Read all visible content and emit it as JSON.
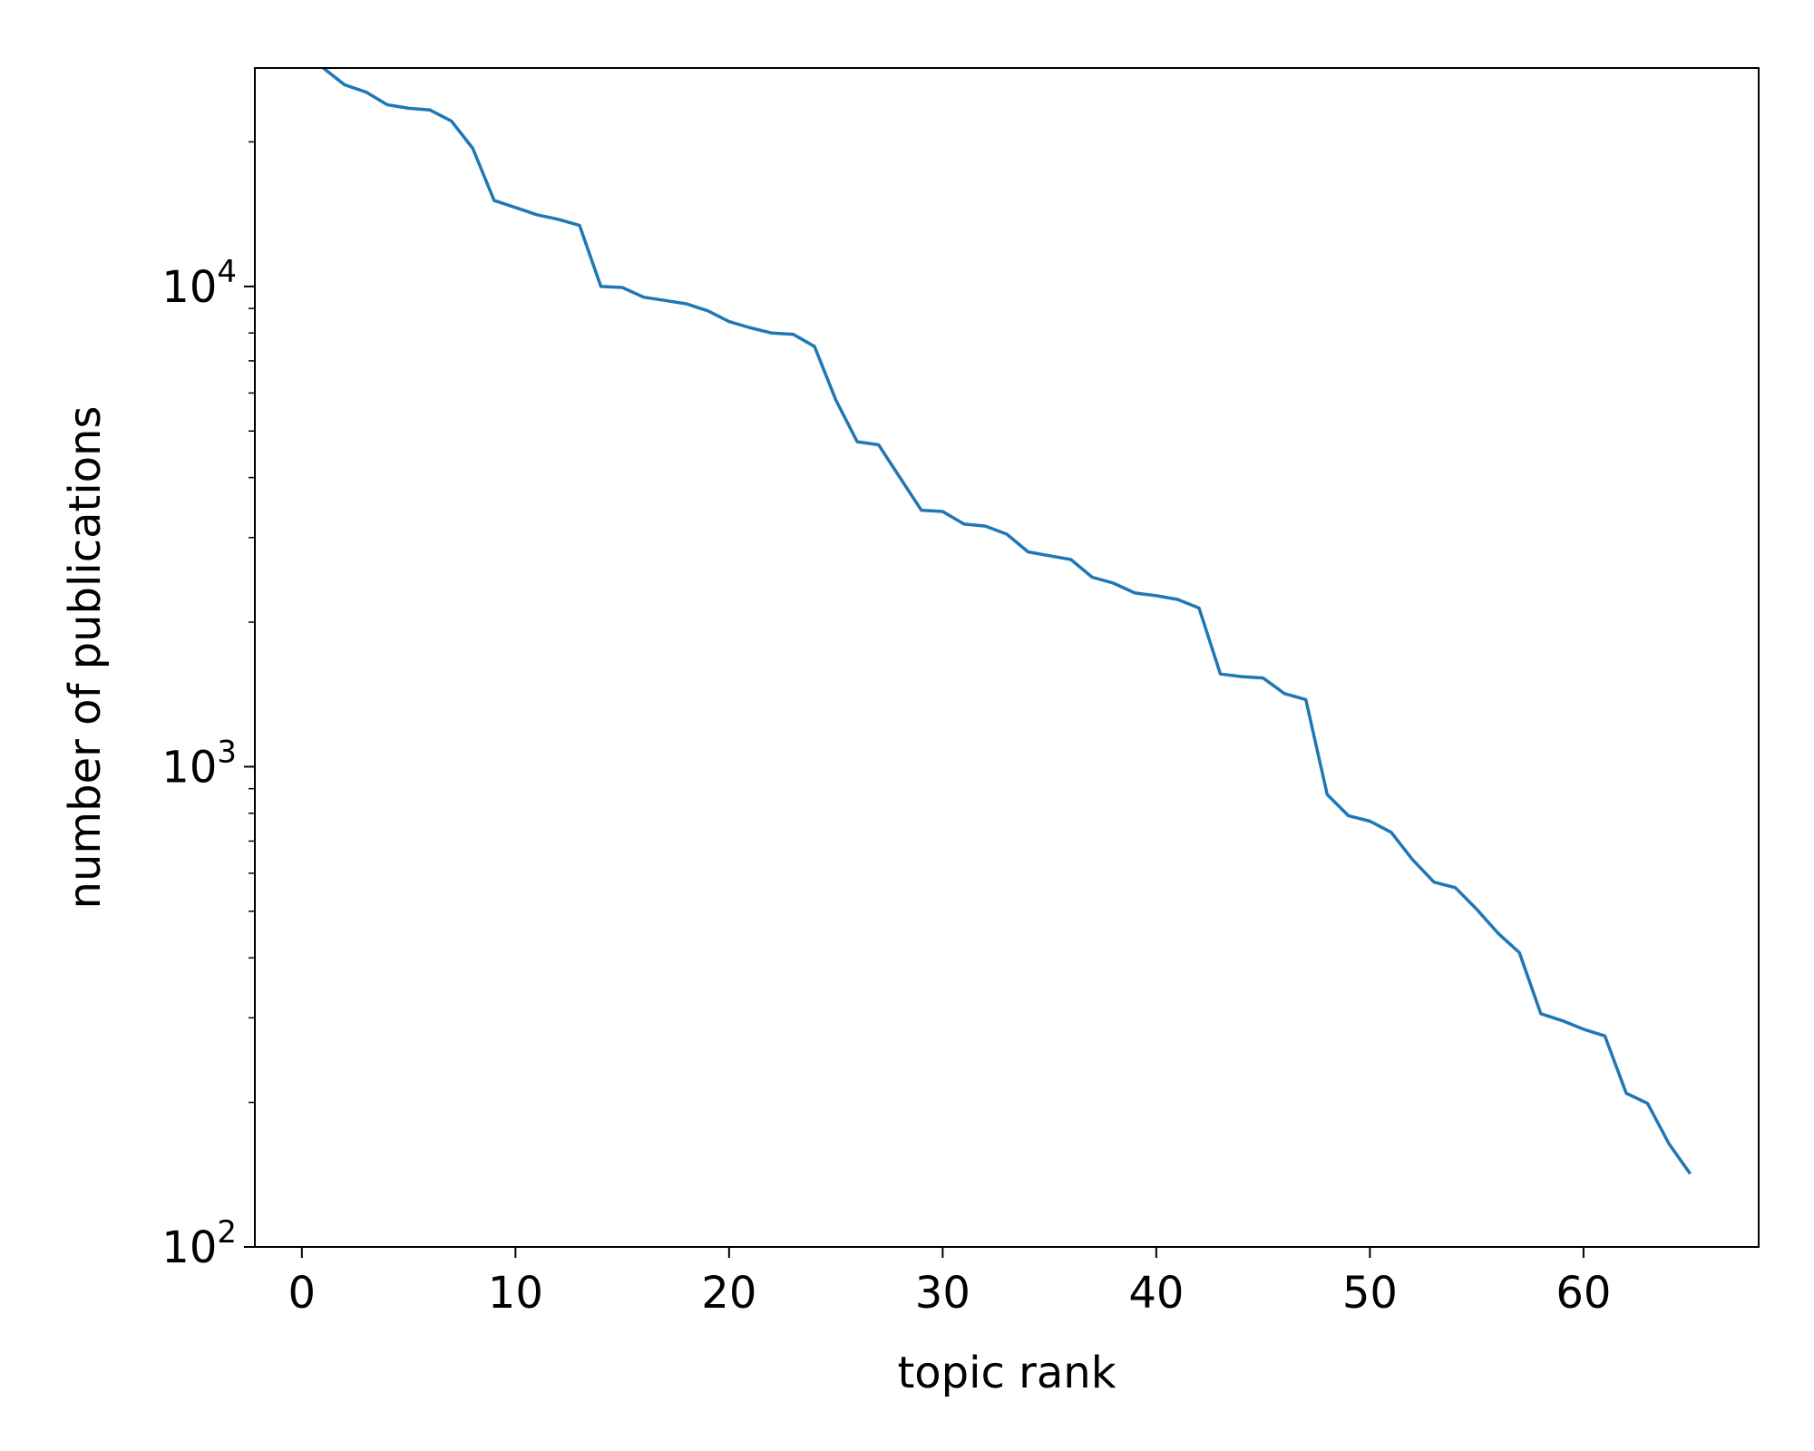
{
  "chart_data": {
    "type": "line",
    "title": "",
    "xlabel": "topic rank",
    "ylabel": "number of publications",
    "yscale": "log",
    "xlim": [
      -2.2,
      68.2
    ],
    "ylim": [
      100,
      28500
    ],
    "grid": false,
    "legend": "none",
    "line_color": "#1f77b4",
    "x_ticks": [
      {
        "value": 0,
        "label": "0"
      },
      {
        "value": 10,
        "label": "10"
      },
      {
        "value": 20,
        "label": "20"
      },
      {
        "value": 30,
        "label": "30"
      },
      {
        "value": 40,
        "label": "40"
      },
      {
        "value": 50,
        "label": "50"
      },
      {
        "value": 60,
        "label": "60"
      }
    ],
    "y_major_ticks": [
      {
        "value": 100,
        "base": "10",
        "exponent": "2"
      },
      {
        "value": 1000,
        "base": "10",
        "exponent": "3"
      },
      {
        "value": 10000,
        "base": "10",
        "exponent": "4"
      }
    ],
    "y_minor_ticks": [
      200,
      300,
      400,
      500,
      600,
      700,
      800,
      900,
      2000,
      3000,
      4000,
      5000,
      6000,
      7000,
      8000,
      9000,
      20000
    ],
    "series": [
      {
        "x": [
          1,
          2,
          3,
          4,
          5,
          6,
          7,
          8,
          9,
          10,
          11,
          12,
          13,
          14,
          15,
          16,
          17,
          18,
          19,
          20,
          21,
          22,
          23,
          24,
          25,
          26,
          27,
          28,
          29,
          30,
          31,
          32,
          33,
          34,
          35,
          36,
          37,
          38,
          39,
          40,
          41,
          42,
          43,
          44,
          45,
          46,
          47,
          48,
          49,
          50,
          51,
          52,
          53,
          54,
          55,
          56,
          57,
          58,
          59,
          60,
          61,
          62,
          63,
          64,
          65
        ],
        "y": [
          28500,
          26300,
          25400,
          23900,
          23500,
          23300,
          22100,
          19400,
          15100,
          14600,
          14100,
          13800,
          13400,
          10000,
          9950,
          9500,
          9350,
          9200,
          8900,
          8450,
          8200,
          8000,
          7950,
          7500,
          5800,
          4750,
          4680,
          4000,
          3420,
          3400,
          3200,
          3170,
          3050,
          2800,
          2750,
          2700,
          2480,
          2410,
          2300,
          2270,
          2230,
          2140,
          1560,
          1540,
          1530,
          1420,
          1380,
          875,
          790,
          770,
          730,
          640,
          575,
          560,
          505,
          450,
          410,
          306,
          296,
          284,
          275,
          209,
          199,
          164,
          142
        ]
      }
    ]
  }
}
